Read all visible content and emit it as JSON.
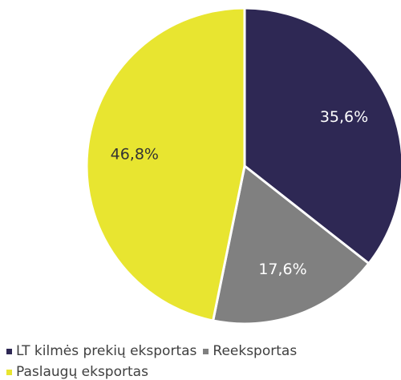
{
  "chart_data": {
    "type": "pie",
    "categories": [
      "LT kilmės prekių eksportas",
      "Reeksportas",
      "Paslaugų eksportas"
    ],
    "values": [
      35.6,
      17.6,
      46.8
    ],
    "value_labels": [
      "35,6%",
      "17,6%",
      "46,8%"
    ],
    "colors": [
      "#2e2854",
      "#808080",
      "#e8e530"
    ],
    "legend": "bottom"
  }
}
